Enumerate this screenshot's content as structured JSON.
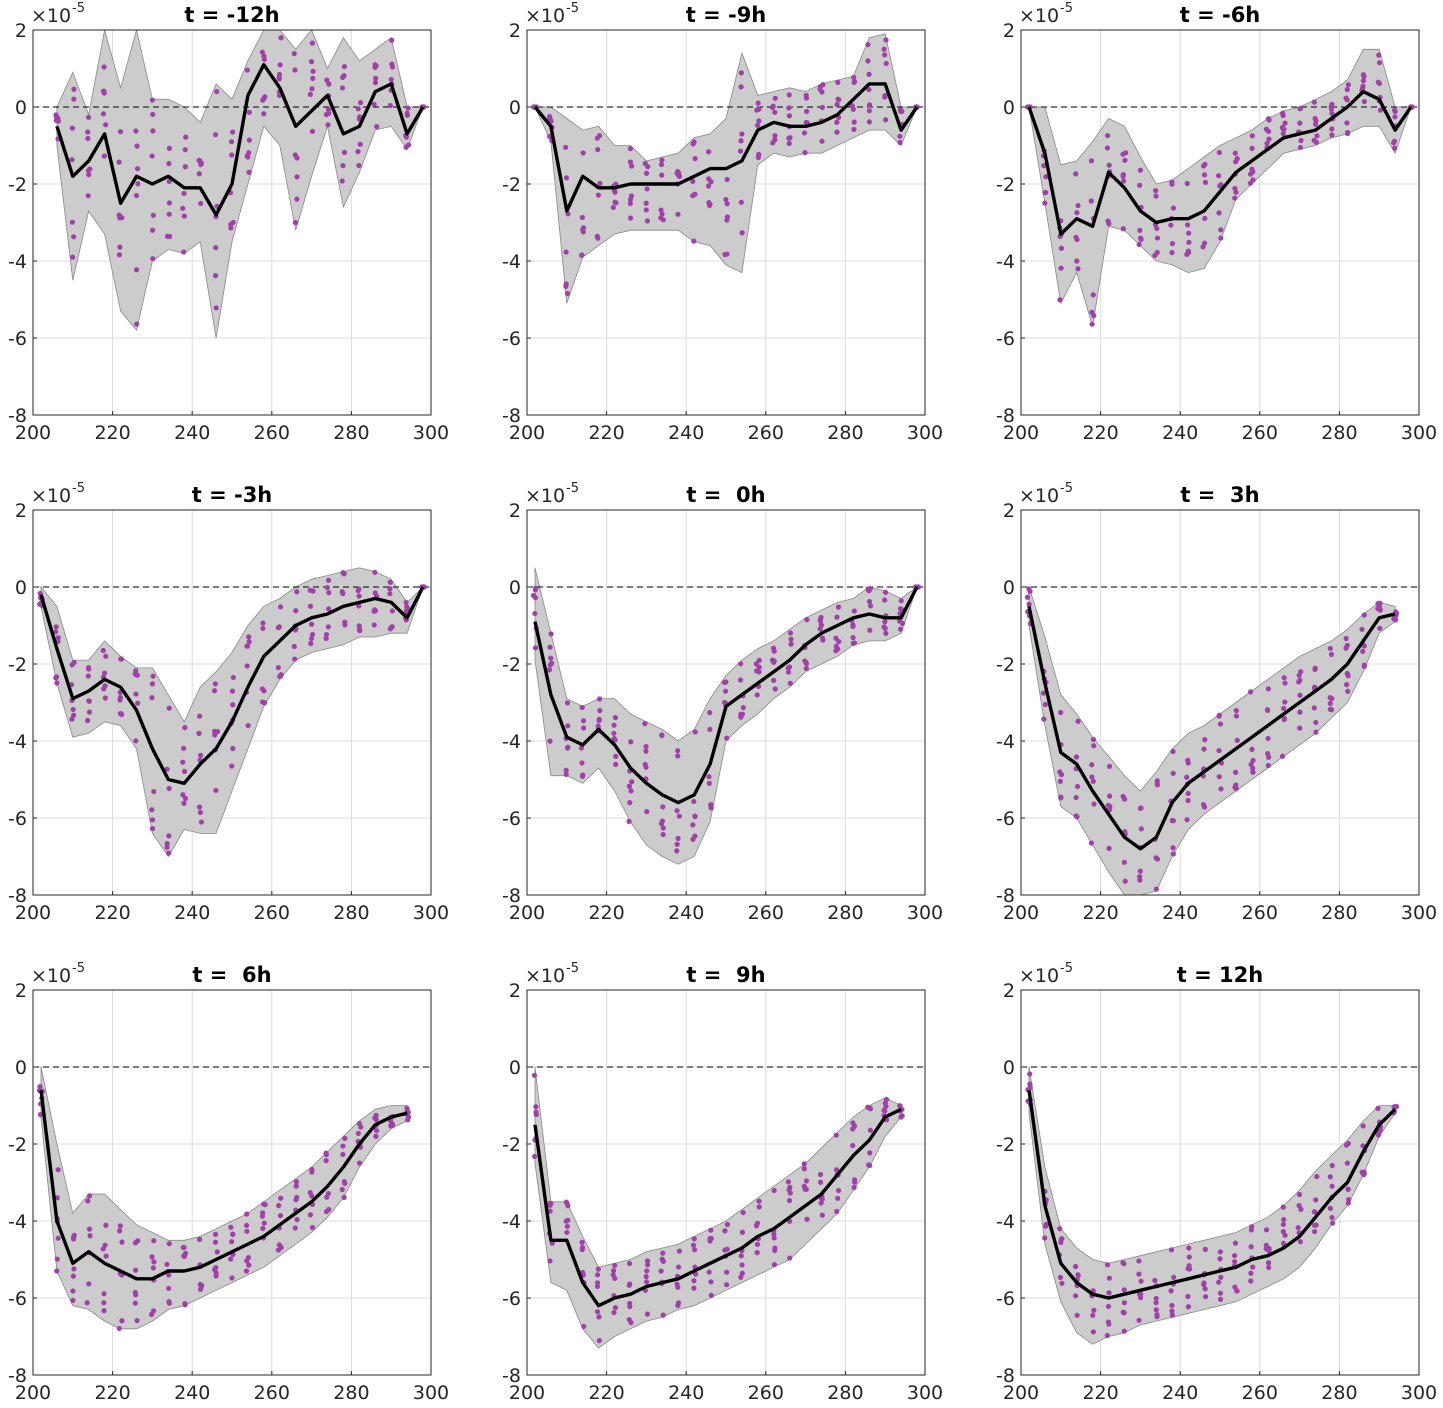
{
  "figure": {
    "exponent_prefix": "×10",
    "exponent_power": "-5"
  },
  "colors": {
    "band_fill": "#cccccc",
    "band_edge": "#888888",
    "mean_line": "#000000",
    "points": "#a040a8",
    "grid": "#dcdcdc",
    "zero_line": "#000000"
  },
  "chart_data": [
    {
      "type": "line",
      "title": "t = -12h",
      "xlim": [
        200,
        300
      ],
      "ylim": [
        -8,
        2
      ],
      "xticks": [
        200,
        220,
        240,
        260,
        280,
        300
      ],
      "yticks": [
        2,
        0,
        -2,
        -4,
        -6,
        -8
      ],
      "x": [
        206,
        210,
        214,
        218,
        222,
        226,
        230,
        234,
        238,
        242,
        246,
        250,
        254,
        258,
        262,
        266,
        270,
        274,
        278,
        282,
        286,
        290,
        294,
        298
      ],
      "mean": [
        -0.5,
        -1.8,
        -1.4,
        -0.7,
        -2.5,
        -1.8,
        -2.0,
        -1.8,
        -2.1,
        -2.1,
        -2.8,
        -2.0,
        0.3,
        1.1,
        0.5,
        -0.5,
        -0.1,
        0.3,
        -0.7,
        -0.5,
        0.4,
        0.6,
        -0.7,
        0.0
      ],
      "upper": [
        0.0,
        0.9,
        -0.2,
        2.0,
        0.5,
        2.0,
        0.2,
        0.2,
        0.0,
        -0.4,
        0.6,
        0.2,
        1.2,
        2.0,
        2.0,
        1.5,
        2.0,
        1.0,
        1.8,
        1.2,
        1.5,
        1.8,
        0.0,
        0.0
      ],
      "lower": [
        -1.0,
        -4.5,
        -2.7,
        -3.3,
        -5.3,
        -5.8,
        -4.0,
        -3.7,
        -3.8,
        -3.5,
        -6.0,
        -3.5,
        -2.0,
        -0.5,
        -1.0,
        -3.2,
        -1.8,
        -0.5,
        -2.6,
        -1.7,
        -0.6,
        -0.5,
        -1.1,
        0.0
      ],
      "zero_line": 0
    },
    {
      "type": "line",
      "title": "t = -9h",
      "xlim": [
        200,
        300
      ],
      "ylim": [
        -8,
        2
      ],
      "xticks": [
        200,
        220,
        240,
        260,
        280,
        300
      ],
      "yticks": [
        2,
        0,
        -2,
        -4,
        -6,
        -8
      ],
      "x": [
        202,
        206,
        210,
        214,
        218,
        222,
        226,
        230,
        234,
        238,
        242,
        246,
        250,
        254,
        258,
        262,
        266,
        270,
        274,
        278,
        282,
        286,
        290,
        294,
        298
      ],
      "mean": [
        0.0,
        -0.5,
        -2.7,
        -1.8,
        -2.1,
        -2.1,
        -2.0,
        -2.0,
        -2.0,
        -2.0,
        -1.8,
        -1.6,
        -1.6,
        -1.4,
        -0.6,
        -0.4,
        -0.5,
        -0.5,
        -0.4,
        -0.2,
        0.2,
        0.6,
        0.6,
        -0.6,
        0.0
      ],
      "upper": [
        0.0,
        0.0,
        -0.3,
        -0.6,
        -0.5,
        -1.0,
        -1.0,
        -1.4,
        -1.3,
        -1.2,
        -0.8,
        -0.7,
        -0.3,
        1.4,
        0.3,
        0.4,
        0.5,
        0.4,
        0.6,
        0.7,
        0.8,
        1.8,
        1.9,
        0.0,
        0.0
      ],
      "lower": [
        0.0,
        -0.9,
        -5.1,
        -3.9,
        -3.6,
        -3.3,
        -3.2,
        -3.2,
        -3.2,
        -3.2,
        -3.5,
        -3.6,
        -4.1,
        -4.3,
        -1.5,
        -1.2,
        -1.3,
        -1.2,
        -1.2,
        -1.0,
        -0.8,
        -0.6,
        -0.6,
        -1.0,
        0.0
      ],
      "zero_line": 0
    },
    {
      "type": "line",
      "title": "t = -6h",
      "xlim": [
        200,
        300
      ],
      "ylim": [
        -8,
        2
      ],
      "xticks": [
        200,
        220,
        240,
        260,
        280,
        300
      ],
      "yticks": [
        2,
        0,
        -2,
        -4,
        -6,
        -8
      ],
      "x": [
        202,
        206,
        210,
        214,
        218,
        222,
        226,
        230,
        234,
        238,
        242,
        246,
        250,
        254,
        258,
        262,
        266,
        270,
        274,
        278,
        282,
        286,
        290,
        294,
        298
      ],
      "mean": [
        0.0,
        -1.2,
        -3.3,
        -2.9,
        -3.1,
        -1.7,
        -2.1,
        -2.7,
        -3.0,
        -2.9,
        -2.9,
        -2.7,
        -2.2,
        -1.7,
        -1.4,
        -1.1,
        -0.8,
        -0.7,
        -0.6,
        -0.3,
        0.0,
        0.4,
        0.2,
        -0.6,
        0.0
      ],
      "upper": [
        0.0,
        0.0,
        -1.5,
        -1.4,
        -0.9,
        -0.3,
        -0.5,
        -1.3,
        -2.0,
        -1.9,
        -1.6,
        -1.3,
        -1.0,
        -0.8,
        -0.6,
        -0.3,
        -0.1,
        0.0,
        0.2,
        0.4,
        0.7,
        1.5,
        1.5,
        0.0,
        0.0
      ],
      "lower": [
        0.0,
        -2.5,
        -5.1,
        -4.3,
        -5.7,
        -3.1,
        -3.2,
        -3.6,
        -4.0,
        -4.1,
        -4.3,
        -4.2,
        -3.5,
        -2.4,
        -2.0,
        -1.6,
        -1.2,
        -1.1,
        -1.0,
        -0.8,
        -0.7,
        -0.5,
        -0.5,
        -1.2,
        0.0
      ],
      "zero_line": 0
    },
    {
      "type": "line",
      "title": "t = -3h",
      "xlim": [
        200,
        300
      ],
      "ylim": [
        -8,
        2
      ],
      "xticks": [
        200,
        220,
        240,
        260,
        280,
        300
      ],
      "yticks": [
        2,
        0,
        -2,
        -4,
        -6,
        -8
      ],
      "x": [
        202,
        206,
        210,
        214,
        218,
        222,
        226,
        230,
        234,
        238,
        242,
        246,
        250,
        254,
        258,
        262,
        266,
        270,
        274,
        278,
        282,
        286,
        290,
        294,
        298
      ],
      "mean": [
        -0.2,
        -1.6,
        -2.9,
        -2.7,
        -2.4,
        -2.6,
        -3.2,
        -4.2,
        -5.0,
        -5.1,
        -4.6,
        -4.2,
        -3.5,
        -2.6,
        -1.8,
        -1.4,
        -1.0,
        -0.8,
        -0.7,
        -0.5,
        -0.4,
        -0.3,
        -0.4,
        -0.8,
        0.0
      ],
      "upper": [
        0.0,
        -0.5,
        -1.9,
        -1.9,
        -1.4,
        -1.8,
        -2.1,
        -2.1,
        -2.8,
        -3.5,
        -2.6,
        -2.2,
        -1.7,
        -1.0,
        -0.5,
        -0.3,
        0.0,
        0.2,
        0.3,
        0.4,
        0.5,
        0.4,
        0.2,
        -0.4,
        0.0
      ],
      "lower": [
        -0.5,
        -2.5,
        -3.9,
        -3.8,
        -3.5,
        -3.6,
        -4.2,
        -6.4,
        -7.0,
        -6.3,
        -6.4,
        -6.4,
        -5.3,
        -4.2,
        -3.1,
        -2.4,
        -1.9,
        -1.7,
        -1.6,
        -1.5,
        -1.3,
        -1.3,
        -1.2,
        -1.2,
        0.0
      ],
      "zero_line": 0
    },
    {
      "type": "line",
      "title": "t =  0h",
      "xlim": [
        200,
        300
      ],
      "ylim": [
        -8,
        2
      ],
      "xticks": [
        200,
        220,
        240,
        260,
        280,
        300
      ],
      "yticks": [
        2,
        0,
        -2,
        -4,
        -6,
        -8
      ],
      "x": [
        202,
        206,
        210,
        214,
        218,
        222,
        226,
        230,
        234,
        238,
        242,
        246,
        250,
        254,
        258,
        262,
        266,
        270,
        274,
        278,
        282,
        286,
        290,
        294,
        298
      ],
      "mean": [
        -0.9,
        -2.8,
        -3.9,
        -4.1,
        -3.7,
        -4.1,
        -4.7,
        -5.1,
        -5.4,
        -5.6,
        -5.4,
        -4.6,
        -3.1,
        -2.8,
        -2.5,
        -2.2,
        -1.9,
        -1.5,
        -1.2,
        -1.0,
        -0.8,
        -0.7,
        -0.8,
        -0.8,
        0.0
      ],
      "upper": [
        0.5,
        -1.2,
        -2.9,
        -3.1,
        -2.9,
        -2.9,
        -3.3,
        -3.5,
        -3.7,
        -4.0,
        -3.7,
        -2.9,
        -2.3,
        -1.9,
        -1.6,
        -1.4,
        -1.1,
        -0.8,
        -0.6,
        -0.4,
        -0.3,
        0.0,
        -0.1,
        -0.3,
        0.0
      ],
      "lower": [
        -1.9,
        -4.9,
        -4.9,
        -5.1,
        -4.7,
        -5.3,
        -6.1,
        -6.7,
        -7.0,
        -7.2,
        -7.0,
        -6.1,
        -4.0,
        -3.6,
        -3.3,
        -2.9,
        -2.6,
        -2.2,
        -2.0,
        -1.8,
        -1.5,
        -1.4,
        -1.4,
        -1.2,
        0.0
      ],
      "zero_line": 0
    },
    {
      "type": "line",
      "title": "t =  3h",
      "xlim": [
        200,
        300
      ],
      "ylim": [
        -8,
        2
      ],
      "xticks": [
        200,
        220,
        240,
        260,
        280,
        300
      ],
      "yticks": [
        2,
        0,
        -2,
        -4,
        -6,
        -8
      ],
      "x": [
        202,
        206,
        210,
        214,
        218,
        222,
        226,
        230,
        234,
        238,
        242,
        246,
        250,
        254,
        258,
        262,
        266,
        270,
        274,
        278,
        282,
        286,
        290,
        294
      ],
      "mean": [
        -0.5,
        -2.5,
        -4.3,
        -4.6,
        -5.3,
        -5.9,
        -6.5,
        -6.8,
        -6.5,
        -5.6,
        -5.1,
        -4.8,
        -4.5,
        -4.2,
        -3.9,
        -3.6,
        -3.3,
        -3.0,
        -2.7,
        -2.4,
        -2.0,
        -1.4,
        -0.8,
        -0.7
      ],
      "upper": [
        0.0,
        -1.3,
        -2.8,
        -3.3,
        -3.9,
        -4.4,
        -4.9,
        -5.3,
        -4.8,
        -4.2,
        -3.8,
        -3.6,
        -3.3,
        -3.0,
        -2.7,
        -2.4,
        -2.1,
        -1.8,
        -1.6,
        -1.4,
        -1.1,
        -0.7,
        -0.4,
        -0.5
      ],
      "lower": [
        -1.0,
        -3.6,
        -5.7,
        -6.0,
        -6.7,
        -7.4,
        -8.0,
        -8.0,
        -7.9,
        -7.0,
        -6.3,
        -5.9,
        -5.6,
        -5.3,
        -5.0,
        -4.7,
        -4.4,
        -4.1,
        -3.8,
        -3.4,
        -3.0,
        -2.2,
        -1.2,
        -0.9
      ],
      "zero_line": 0
    },
    {
      "type": "line",
      "title": "t =  6h",
      "xlim": [
        200,
        300
      ],
      "ylim": [
        -8,
        2
      ],
      "xticks": [
        200,
        220,
        240,
        260,
        280,
        300
      ],
      "yticks": [
        2,
        0,
        -2,
        -4,
        -6,
        -8
      ],
      "x": [
        202,
        206,
        210,
        214,
        218,
        222,
        226,
        230,
        234,
        238,
        242,
        246,
        250,
        254,
        258,
        262,
        266,
        270,
        274,
        278,
        282,
        286,
        290,
        294
      ],
      "mean": [
        -0.6,
        -4.0,
        -5.1,
        -4.8,
        -5.1,
        -5.3,
        -5.5,
        -5.5,
        -5.3,
        -5.3,
        -5.2,
        -5.0,
        -4.8,
        -4.6,
        -4.4,
        -4.1,
        -3.8,
        -3.5,
        -3.1,
        -2.6,
        -2.0,
        -1.5,
        -1.3,
        -1.2
      ],
      "upper": [
        0.0,
        -2.0,
        -3.8,
        -3.3,
        -3.3,
        -3.7,
        -4.1,
        -4.3,
        -4.5,
        -4.5,
        -4.4,
        -4.2,
        -4.0,
        -3.8,
        -3.5,
        -3.2,
        -2.9,
        -2.6,
        -2.2,
        -1.8,
        -1.4,
        -1.1,
        -1.0,
        -1.0
      ],
      "lower": [
        -1.3,
        -5.3,
        -6.2,
        -6.3,
        -6.6,
        -6.8,
        -6.8,
        -6.6,
        -6.3,
        -6.2,
        -6.0,
        -5.8,
        -5.6,
        -5.4,
        -5.2,
        -4.9,
        -4.6,
        -4.3,
        -3.9,
        -3.4,
        -2.6,
        -2.0,
        -1.6,
        -1.4
      ],
      "zero_line": 0
    },
    {
      "type": "line",
      "title": "t =  9h",
      "xlim": [
        200,
        300
      ],
      "ylim": [
        -8,
        2
      ],
      "xticks": [
        200,
        220,
        240,
        260,
        280,
        300
      ],
      "yticks": [
        2,
        0,
        -2,
        -4,
        -6,
        -8
      ],
      "x": [
        202,
        206,
        210,
        214,
        218,
        222,
        226,
        230,
        234,
        238,
        242,
        246,
        250,
        254,
        258,
        262,
        266,
        270,
        274,
        278,
        282,
        286,
        290,
        294
      ],
      "mean": [
        -1.5,
        -4.5,
        -4.5,
        -5.6,
        -6.2,
        -6.0,
        -5.9,
        -5.7,
        -5.6,
        -5.5,
        -5.3,
        -5.1,
        -4.9,
        -4.7,
        -4.4,
        -4.2,
        -3.9,
        -3.6,
        -3.3,
        -2.8,
        -2.3,
        -1.9,
        -1.3,
        -1.1
      ],
      "upper": [
        0.0,
        -3.5,
        -3.5,
        -4.4,
        -5.2,
        -5.1,
        -5.0,
        -4.8,
        -4.7,
        -4.6,
        -4.4,
        -4.2,
        -4.0,
        -3.7,
        -3.4,
        -3.1,
        -2.8,
        -2.5,
        -2.1,
        -1.7,
        -1.3,
        -1.0,
        -0.8,
        -1.0
      ],
      "lower": [
        -2.5,
        -5.6,
        -5.8,
        -6.8,
        -7.3,
        -7.0,
        -6.8,
        -6.6,
        -6.5,
        -6.3,
        -6.2,
        -6.0,
        -5.8,
        -5.6,
        -5.4,
        -5.2,
        -5.0,
        -4.6,
        -4.2,
        -3.8,
        -3.2,
        -2.6,
        -1.8,
        -1.3
      ],
      "zero_line": 0
    },
    {
      "type": "line",
      "title": "t = 12h",
      "xlim": [
        200,
        300
      ],
      "ylim": [
        -8,
        2
      ],
      "xticks": [
        200,
        220,
        240,
        260,
        280,
        300
      ],
      "yticks": [
        2,
        0,
        -2,
        -4,
        -6,
        -8
      ],
      "x": [
        202,
        206,
        210,
        214,
        218,
        222,
        226,
        230,
        234,
        238,
        242,
        246,
        250,
        254,
        258,
        262,
        266,
        270,
        274,
        278,
        282,
        286,
        290,
        294
      ],
      "mean": [
        -0.6,
        -3.6,
        -5.1,
        -5.6,
        -5.9,
        -6.0,
        -5.9,
        -5.8,
        -5.7,
        -5.6,
        -5.5,
        -5.4,
        -5.3,
        -5.2,
        -5.0,
        -4.9,
        -4.7,
        -4.4,
        -3.9,
        -3.4,
        -3.0,
        -2.2,
        -1.5,
        -1.1
      ],
      "upper": [
        0.0,
        -2.6,
        -4.2,
        -4.7,
        -5.0,
        -5.1,
        -5.0,
        -4.9,
        -4.8,
        -4.7,
        -4.6,
        -4.5,
        -4.4,
        -4.3,
        -4.1,
        -3.9,
        -3.6,
        -3.2,
        -2.7,
        -2.3,
        -1.9,
        -1.4,
        -1.0,
        -1.0
      ],
      "lower": [
        -1.2,
        -4.6,
        -6.1,
        -6.9,
        -7.2,
        -7.0,
        -6.9,
        -6.7,
        -6.6,
        -6.5,
        -6.4,
        -6.3,
        -6.2,
        -6.1,
        -5.9,
        -5.7,
        -5.5,
        -5.2,
        -4.7,
        -4.1,
        -3.6,
        -2.8,
        -1.8,
        -1.2
      ],
      "zero_line": 0
    }
  ]
}
